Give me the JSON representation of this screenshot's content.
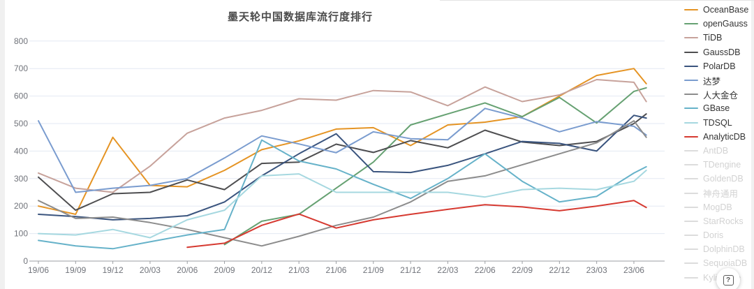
{
  "title": "墨天轮中国数据库流行度排行",
  "help_button": {
    "icon": "boxed-question-icon",
    "glyph": "?"
  },
  "legend": {
    "items": [
      {
        "label": "OceanBase",
        "color": "#e59424",
        "active": true
      },
      {
        "label": "openGauss",
        "color": "#66a172",
        "active": true
      },
      {
        "label": "TiDB",
        "color": "#c7a29b",
        "active": true
      },
      {
        "label": "GaussDB",
        "color": "#4e4e50",
        "active": true
      },
      {
        "label": "PolarDB",
        "color": "#3a547e",
        "active": true
      },
      {
        "label": "达梦",
        "color": "#7a9ccf",
        "active": true
      },
      {
        "label": "人大金仓",
        "color": "#8c8c8c",
        "active": true
      },
      {
        "label": "GBase",
        "color": "#66b2c9",
        "active": true
      },
      {
        "label": "TDSQL",
        "color": "#a6d8e0",
        "active": true
      },
      {
        "label": "AnalyticDB",
        "color": "#d63a31",
        "active": true
      },
      {
        "label": "AntDB",
        "color": "#dcdcdc",
        "active": false
      },
      {
        "label": "TDengine",
        "color": "#dcdcdc",
        "active": false
      },
      {
        "label": "GoldenDB",
        "color": "#dcdcdc",
        "active": false
      },
      {
        "label": "神舟通用",
        "color": "#dcdcdc",
        "active": false
      },
      {
        "label": "MogDB",
        "color": "#dcdcdc",
        "active": false
      },
      {
        "label": "StarRocks",
        "color": "#dcdcdc",
        "active": false
      },
      {
        "label": "Doris",
        "color": "#dcdcdc",
        "active": false
      },
      {
        "label": "DolphinDB",
        "color": "#dcdcdc",
        "active": false
      },
      {
        "label": "SequoiaDB",
        "color": "#dcdcdc",
        "active": false
      },
      {
        "label": "Kyligence",
        "color": "#dcdcdc",
        "active": false
      }
    ]
  },
  "chart_data": {
    "type": "line",
    "title": "墨天轮中国数据库流行度排行",
    "xlabel": "",
    "ylabel": "",
    "ylim": [
      0,
      800
    ],
    "y_ticks": [
      0,
      100,
      200,
      300,
      400,
      500,
      600,
      700,
      800
    ],
    "grid": true,
    "legend_position": "right",
    "x_tick_labels": [
      "19/06",
      "19/09",
      "19/12",
      "20/03",
      "20/06",
      "20/09",
      "20/12",
      "21/03",
      "21/06",
      "21/09",
      "21/12",
      "22/03",
      "22/06",
      "22/09",
      "22/12",
      "23/03",
      "23/06"
    ],
    "x_months": [
      0,
      3,
      6,
      9,
      12,
      15,
      18,
      21,
      24,
      27,
      30,
      33,
      36,
      39,
      42,
      45,
      48,
      49
    ],
    "axis_color": "#9b9ea3",
    "grid_color": "#e3e8f3",
    "tick_text_color": "#70737a",
    "series": [
      {
        "name": "OceanBase",
        "color": "#e59424",
        "values": [
          200,
          170,
          450,
          275,
          270,
          330,
          405,
          437,
          480,
          485,
          420,
          495,
          505,
          525,
          600,
          675,
          700,
          645
        ]
      },
      {
        "name": "openGauss",
        "color": "#66a172",
        "values": [
          null,
          null,
          null,
          null,
          null,
          60,
          145,
          170,
          265,
          360,
          495,
          535,
          575,
          525,
          595,
          502,
          617,
          630
        ]
      },
      {
        "name": "TiDB",
        "color": "#c7a29b",
        "values": [
          320,
          265,
          250,
          345,
          465,
          520,
          548,
          590,
          585,
          620,
          615,
          565,
          633,
          580,
          604,
          660,
          650,
          580
        ]
      },
      {
        "name": "GaussDB",
        "color": "#4e4e50",
        "values": [
          305,
          185,
          245,
          250,
          295,
          260,
          355,
          360,
          425,
          395,
          438,
          412,
          476,
          433,
          420,
          435,
          500,
          535
        ]
      },
      {
        "name": "PolarDB",
        "color": "#3a547e",
        "values": [
          170,
          162,
          150,
          155,
          165,
          215,
          310,
          390,
          463,
          325,
          322,
          348,
          390,
          435,
          428,
          400,
          530,
          520
        ]
      },
      {
        "name": "达梦",
        "color": "#7a9ccf",
        "values": [
          510,
          250,
          265,
          275,
          300,
          375,
          455,
          426,
          394,
          470,
          445,
          441,
          555,
          520,
          470,
          507,
          490,
          458
        ]
      },
      {
        "name": "人大金仓",
        "color": "#8c8c8c",
        "values": [
          220,
          155,
          160,
          140,
          115,
          85,
          55,
          90,
          130,
          160,
          215,
          290,
          310,
          350,
          390,
          430,
          510,
          450
        ]
      },
      {
        "name": "GBase",
        "color": "#66b2c9",
        "values": [
          75,
          55,
          45,
          70,
          95,
          115,
          440,
          364,
          335,
          279,
          228,
          300,
          390,
          290,
          215,
          235,
          320,
          343
        ]
      },
      {
        "name": "TDSQL",
        "color": "#a6d8e0",
        "values": [
          100,
          95,
          115,
          85,
          150,
          185,
          310,
          317,
          250,
          250,
          250,
          250,
          233,
          260,
          265,
          260,
          290,
          330
        ]
      },
      {
        "name": "AnalyticDB",
        "color": "#d63a31",
        "values": [
          null,
          null,
          null,
          null,
          50,
          65,
          130,
          171,
          120,
          150,
          170,
          188,
          205,
          197,
          183,
          200,
          220,
          195
        ]
      }
    ]
  }
}
